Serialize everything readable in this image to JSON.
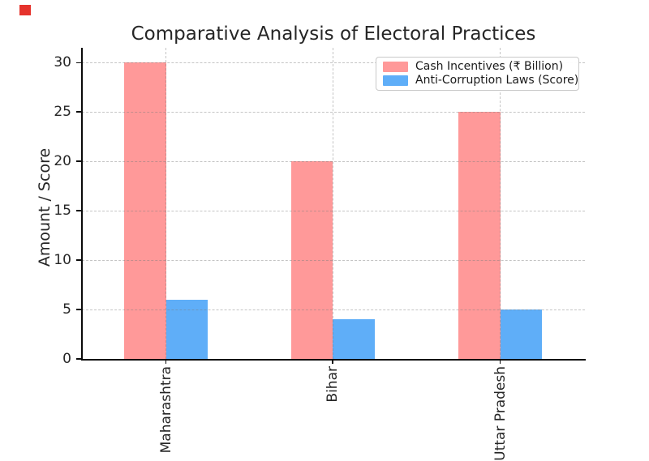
{
  "page": {
    "background": "#ffffff"
  },
  "decorations": {
    "top_left_marker_color": "#e5332c"
  },
  "chart_data": {
    "type": "bar",
    "bar_orientation": "vertical",
    "title": "Comparative Analysis of Electoral Practices",
    "xlabel": "",
    "ylabel": "Amount / Score",
    "categories": [
      "Maharashtra",
      "Bihar",
      "Uttar Pradesh"
    ],
    "categories_visible_in_crop": [
      "ashtra",
      "Bihar",
      "adesh"
    ],
    "x_tick_label_rotation_deg": 90,
    "series": [
      {
        "name": "Cash Incentives (₹ Billion)",
        "color": "#ff9999",
        "values": [
          30,
          20,
          25
        ]
      },
      {
        "name": "Anti-Corruption Laws (Score)",
        "color": "#5faef8",
        "values": [
          6,
          4,
          5
        ]
      }
    ],
    "yticks": [
      0,
      5,
      10,
      15,
      20,
      25,
      30
    ],
    "ylim": [
      0,
      31.5
    ],
    "grid": true,
    "grid_style": "dashed",
    "legend_position": "upper right",
    "axis_color": "#0a0a0a",
    "grid_color": "#bdbdbd"
  }
}
